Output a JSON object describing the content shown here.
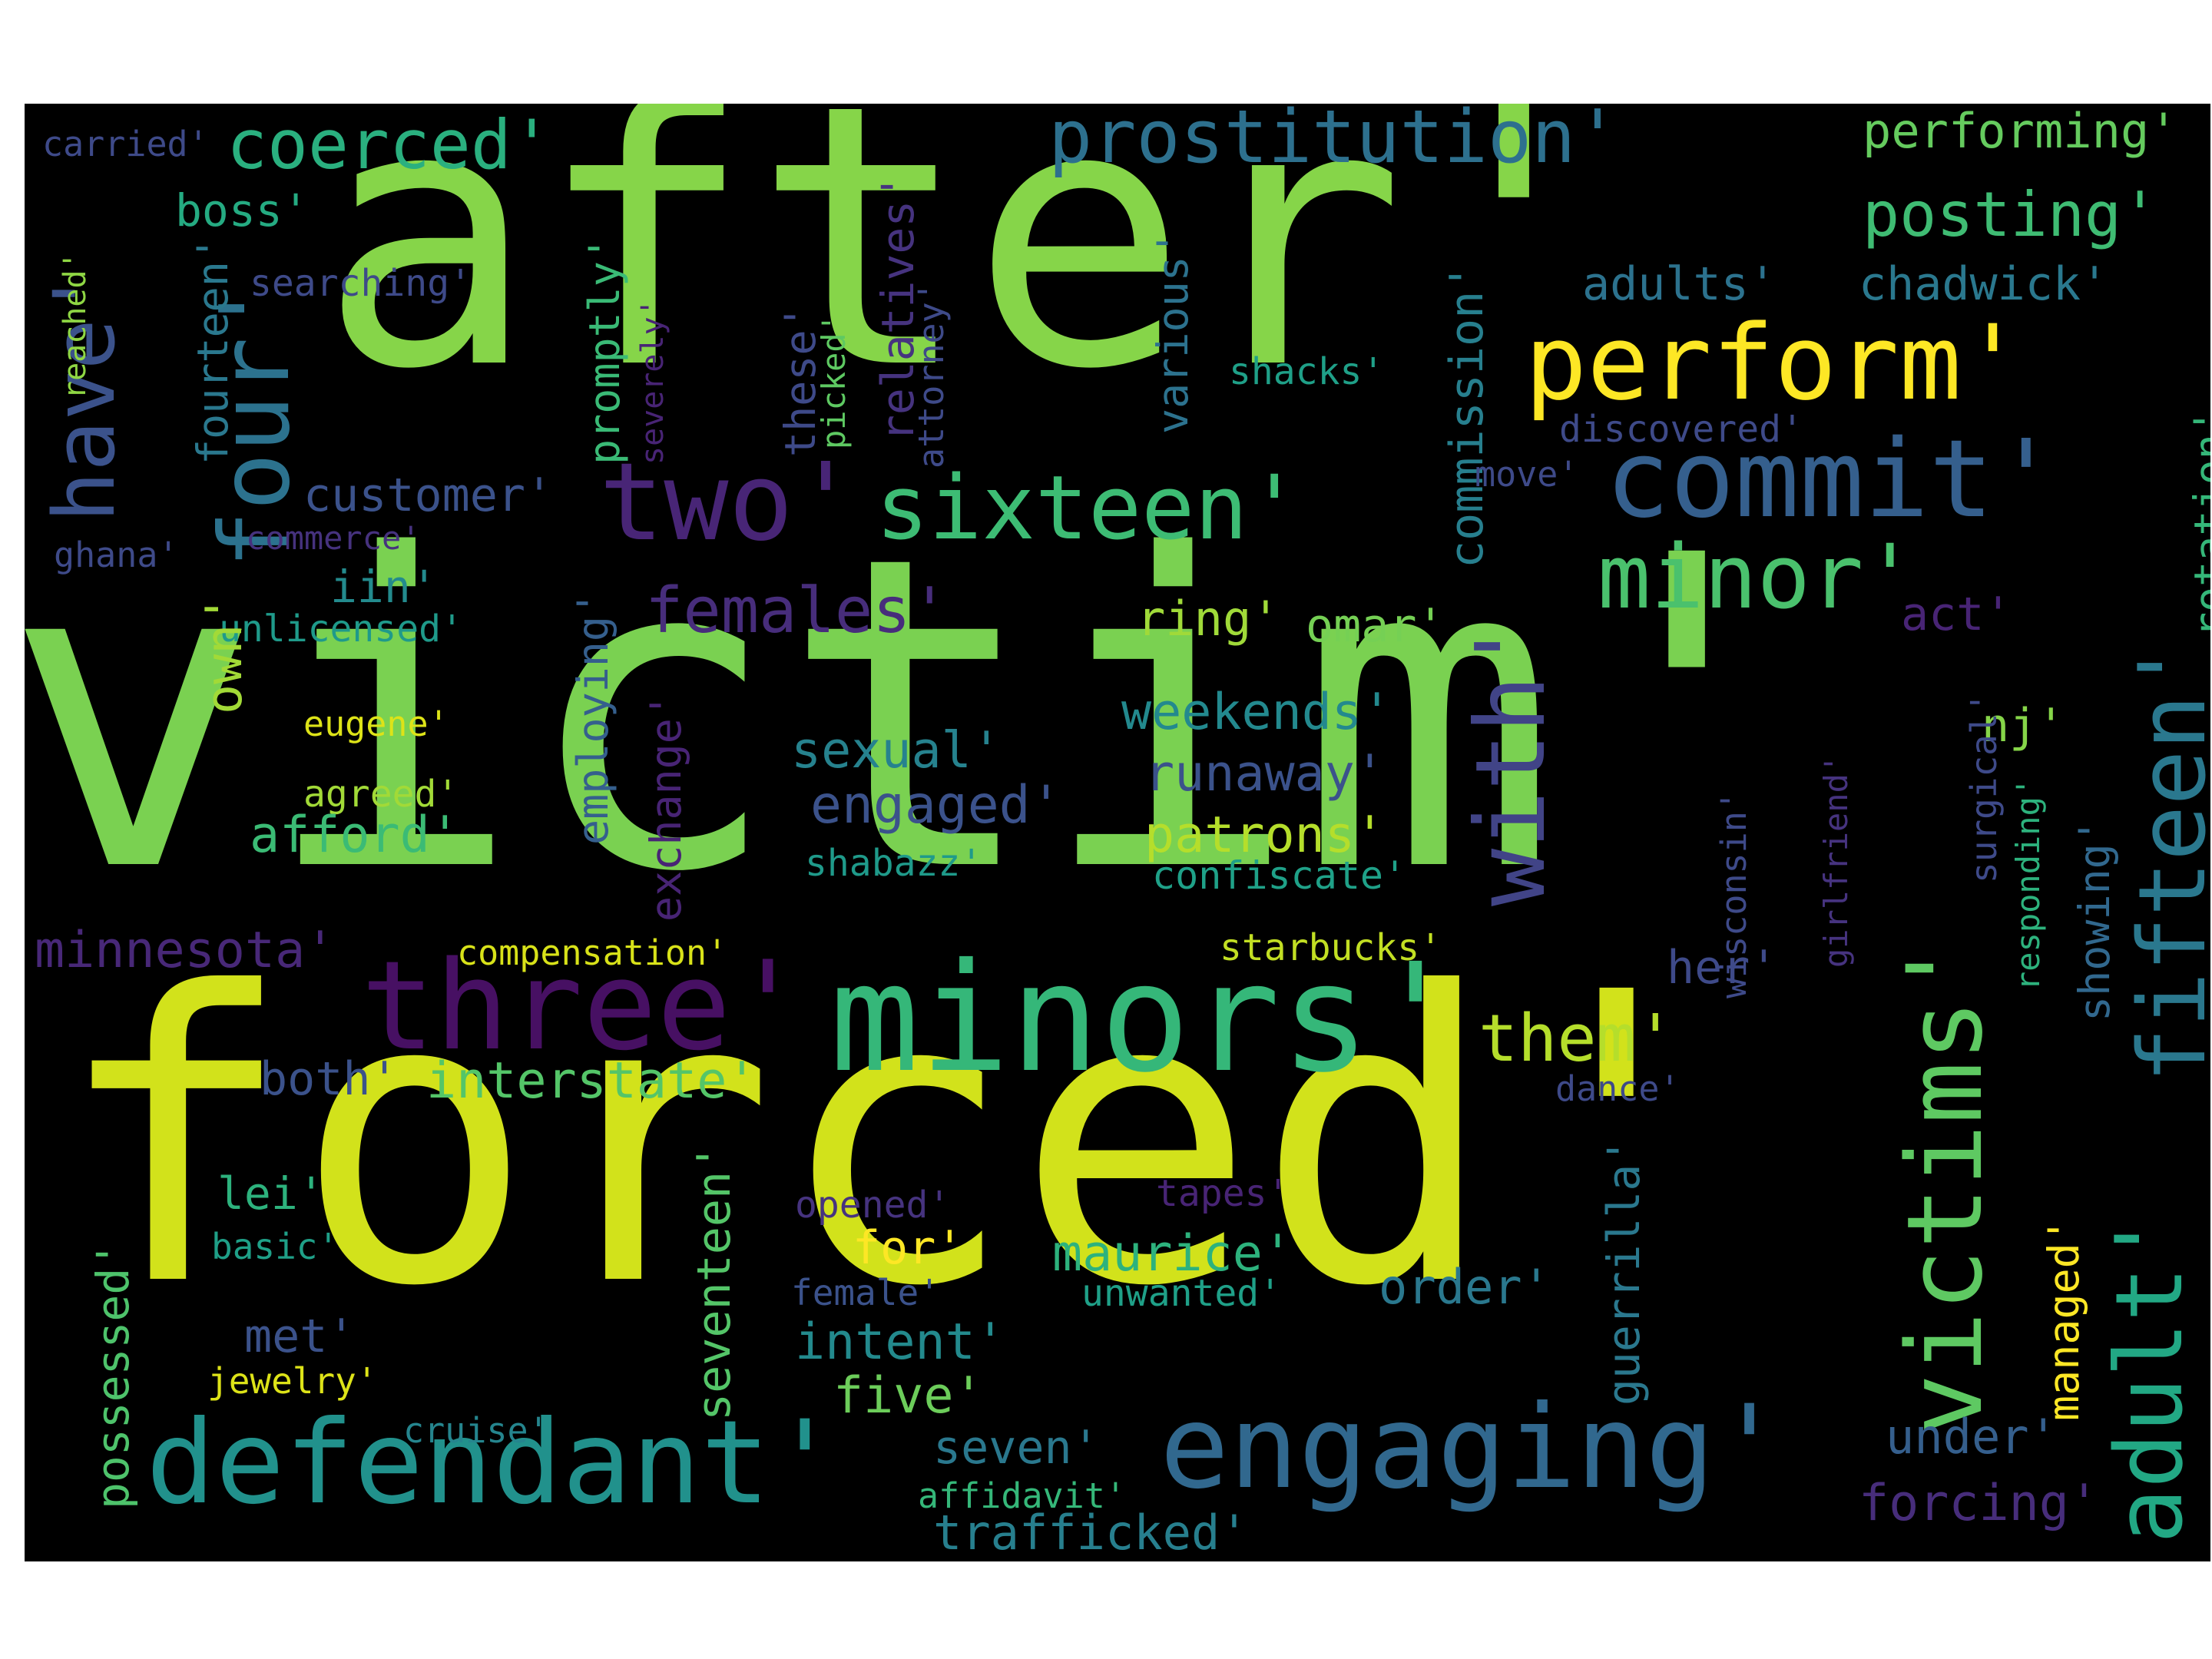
{
  "words": [
    {
      "id": "after",
      "text": "after'",
      "color": "#86d549"
    },
    {
      "id": "victim",
      "text": "victim'",
      "color": "#7ad151"
    },
    {
      "id": "forced",
      "text": "forced'",
      "color": "#d2e21b"
    },
    {
      "id": "minors",
      "text": "minors'",
      "color": "#35b779"
    },
    {
      "id": "three",
      "text": "three'",
      "color": "#471063"
    },
    {
      "id": "defendant",
      "text": "defendant'",
      "color": "#21918c"
    },
    {
      "id": "engaging",
      "text": "engaging'",
      "color": "#31688e"
    },
    {
      "id": "four",
      "text": "four'",
      "color": "#2c728e"
    },
    {
      "id": "have",
      "text": "have'",
      "color": "#3b528b"
    },
    {
      "id": "two",
      "text": "two'",
      "color": "#482576"
    },
    {
      "id": "sixteen",
      "text": "sixteen'",
      "color": "#3dbc74"
    },
    {
      "id": "commit",
      "text": "commit'",
      "color": "#355f8d"
    },
    {
      "id": "perform",
      "text": "perform'",
      "color": "#fde725"
    },
    {
      "id": "coerced",
      "text": "coerced'",
      "color": "#2ab07f"
    },
    {
      "id": "prostitution",
      "text": "prostitution'",
      "color": "#2d708e"
    },
    {
      "id": "posting",
      "text": "posting'",
      "color": "#3fbc73"
    },
    {
      "id": "minor",
      "text": "minor'",
      "color": "#4ac16d"
    },
    {
      "id": "with",
      "text": "with'",
      "color": "#414487"
    },
    {
      "id": "victims",
      "text": "victims'",
      "color": "#5ec962"
    },
    {
      "id": "adult",
      "text": "adult'",
      "color": "#22a884"
    },
    {
      "id": "fifteen",
      "text": "fifteen'",
      "color": "#2a788e"
    },
    {
      "id": "them",
      "text": "them'",
      "color": "#b5de2b"
    },
    {
      "id": "performing",
      "text": "performing'",
      "color": "#65cb5e"
    },
    {
      "id": "chadwick",
      "text": "chadwick'",
      "color": "#2a788e"
    },
    {
      "id": "adults",
      "text": "adults'",
      "color": "#2c728e"
    },
    {
      "id": "boss",
      "text": "boss'",
      "color": "#25ab82"
    },
    {
      "id": "carried",
      "text": "carried'",
      "color": "#3e4a89"
    },
    {
      "id": "searching",
      "text": "searching'",
      "color": "#3e4a89"
    },
    {
      "id": "reached",
      "text": "reached'",
      "color": "#8fd744"
    },
    {
      "id": "fourteen",
      "text": "fourteen'",
      "color": "#2a788e"
    },
    {
      "id": "customer",
      "text": "customer'",
      "color": "#3b528b"
    },
    {
      "id": "commerce",
      "text": "commerce'",
      "color": "#46327e"
    },
    {
      "id": "ghana",
      "text": "ghana'",
      "color": "#3e4a89"
    },
    {
      "id": "iin",
      "text": "iin'",
      "color": "#238a8d"
    },
    {
      "id": "unlicensed",
      "text": "unlicensed'",
      "color": "#1f9a8a"
    },
    {
      "id": "own",
      "text": "own'",
      "color": "#a2da37"
    },
    {
      "id": "eugene",
      "text": "eugene'",
      "color": "#dde318"
    },
    {
      "id": "agreed",
      "text": "agreed'",
      "color": "#a2da37"
    },
    {
      "id": "afford",
      "text": "afford'",
      "color": "#3bbb75"
    },
    {
      "id": "minnesota",
      "text": "minnesota'",
      "color": "#482878"
    },
    {
      "id": "compensation",
      "text": "compensation'",
      "color": "#d8e219"
    },
    {
      "id": "both",
      "text": "both'",
      "color": "#3b528b"
    },
    {
      "id": "interstate",
      "text": "interstate'",
      "color": "#54c568"
    },
    {
      "id": "lei",
      "text": "lei'",
      "color": "#2db27d"
    },
    {
      "id": "basic",
      "text": "basic'",
      "color": "#1fa088"
    },
    {
      "id": "possessed",
      "text": "possessed'",
      "color": "#4ec36b"
    },
    {
      "id": "met",
      "text": "met'",
      "color": "#3b528b"
    },
    {
      "id": "jewelry",
      "text": "jewelry'",
      "color": "#dde318"
    },
    {
      "id": "cruise",
      "text": "cruise'",
      "color": "#25858e"
    },
    {
      "id": "promptly",
      "text": "promptly'",
      "color": "#3aba76"
    },
    {
      "id": "severely",
      "text": "severely'",
      "color": "#482475"
    },
    {
      "id": "employing",
      "text": "employing'",
      "color": "#355f8d"
    },
    {
      "id": "exchange",
      "text": "exchange'",
      "color": "#482475"
    },
    {
      "id": "relatives",
      "text": "relatives'",
      "color": "#46337f"
    },
    {
      "id": "these",
      "text": "these'",
      "color": "#3e4a89"
    },
    {
      "id": "picked",
      "text": "picked'",
      "color": "#5ec962"
    },
    {
      "id": "attorney",
      "text": "attorney'",
      "color": "#3e4a89"
    },
    {
      "id": "various",
      "text": "various'",
      "color": "#2c728e"
    },
    {
      "id": "commission",
      "text": "commission'",
      "color": "#277f8e"
    },
    {
      "id": "females",
      "text": "females'",
      "color": "#472d7b"
    },
    {
      "id": "sexual",
      "text": "sexual'",
      "color": "#26828e"
    },
    {
      "id": "engaged",
      "text": "engaged'",
      "color": "#3b528b"
    },
    {
      "id": "shabazz",
      "text": "shabazz'",
      "color": "#1f9a8a"
    },
    {
      "id": "ring",
      "text": "ring'",
      "color": "#a0da39"
    },
    {
      "id": "weekends",
      "text": "weekends'",
      "color": "#23898e"
    },
    {
      "id": "runaway",
      "text": "runaway'",
      "color": "#3b528b"
    },
    {
      "id": "patrons",
      "text": "patrons'",
      "color": "#b5de2b"
    },
    {
      "id": "confiscate",
      "text": "confiscate'",
      "color": "#1fa188"
    },
    {
      "id": "omar",
      "text": "omar'",
      "color": "#75d054"
    },
    {
      "id": "shacks",
      "text": "shacks'",
      "color": "#1fa088"
    },
    {
      "id": "move",
      "text": "move'",
      "color": "#3e4a89"
    },
    {
      "id": "discovered",
      "text": "discovered'",
      "color": "#3e4a89"
    },
    {
      "id": "starbucks",
      "text": "starbucks'",
      "color": "#c2df23"
    },
    {
      "id": "for",
      "text": "for'",
      "color": "#fde725"
    },
    {
      "id": "maurice",
      "text": "maurice'",
      "color": "#2db27d"
    },
    {
      "id": "unwanted",
      "text": "unwanted'",
      "color": "#1fa088"
    },
    {
      "id": "order",
      "text": "order'",
      "color": "#2a788e"
    },
    {
      "id": "intent",
      "text": "intent'",
      "color": "#238a8d"
    },
    {
      "id": "five",
      "text": "five'",
      "color": "#6ccd5a"
    },
    {
      "id": "seven",
      "text": "seven'",
      "color": "#2a788e"
    },
    {
      "id": "affidavit",
      "text": "affidavit'",
      "color": "#35b779"
    },
    {
      "id": "trafficked",
      "text": "trafficked'",
      "color": "#277f8e"
    },
    {
      "id": "opened",
      "text": "opened'",
      "color": "#46337f"
    },
    {
      "id": "tapes",
      "text": "tapes'",
      "color": "#482475"
    },
    {
      "id": "female",
      "text": "female'",
      "color": "#3b528b"
    },
    {
      "id": "seventeen",
      "text": "seventeen'",
      "color": "#54c568"
    },
    {
      "id": "guerrilla",
      "text": "guerrilla'",
      "color": "#2a788e"
    },
    {
      "id": "dance",
      "text": "dance'",
      "color": "#3e4a89"
    },
    {
      "id": "wisconsin",
      "text": "wisconsin'",
      "color": "#3e4a89"
    },
    {
      "id": "girlfriend",
      "text": "girlfriend'",
      "color": "#46337f"
    },
    {
      "id": "her",
      "text": "her'",
      "color": "#3e4a89"
    },
    {
      "id": "act",
      "text": "act'",
      "color": "#482475"
    },
    {
      "id": "nj",
      "text": "nj'",
      "color": "#86d549"
    },
    {
      "id": "surgical",
      "text": "surgical'",
      "color": "#3e4a89"
    },
    {
      "id": "responding",
      "text": "responding'",
      "color": "#2db27d"
    },
    {
      "id": "showing",
      "text": "showing'",
      "color": "#31688e"
    },
    {
      "id": "managed",
      "text": "managed'",
      "color": "#fde725"
    },
    {
      "id": "rotation",
      "text": "rotation'",
      "color": "#35b779"
    },
    {
      "id": "under",
      "text": "under'",
      "color": "#355f8d"
    },
    {
      "id": "forcing",
      "text": "forcing'",
      "color": "#472d7b"
    }
  ]
}
